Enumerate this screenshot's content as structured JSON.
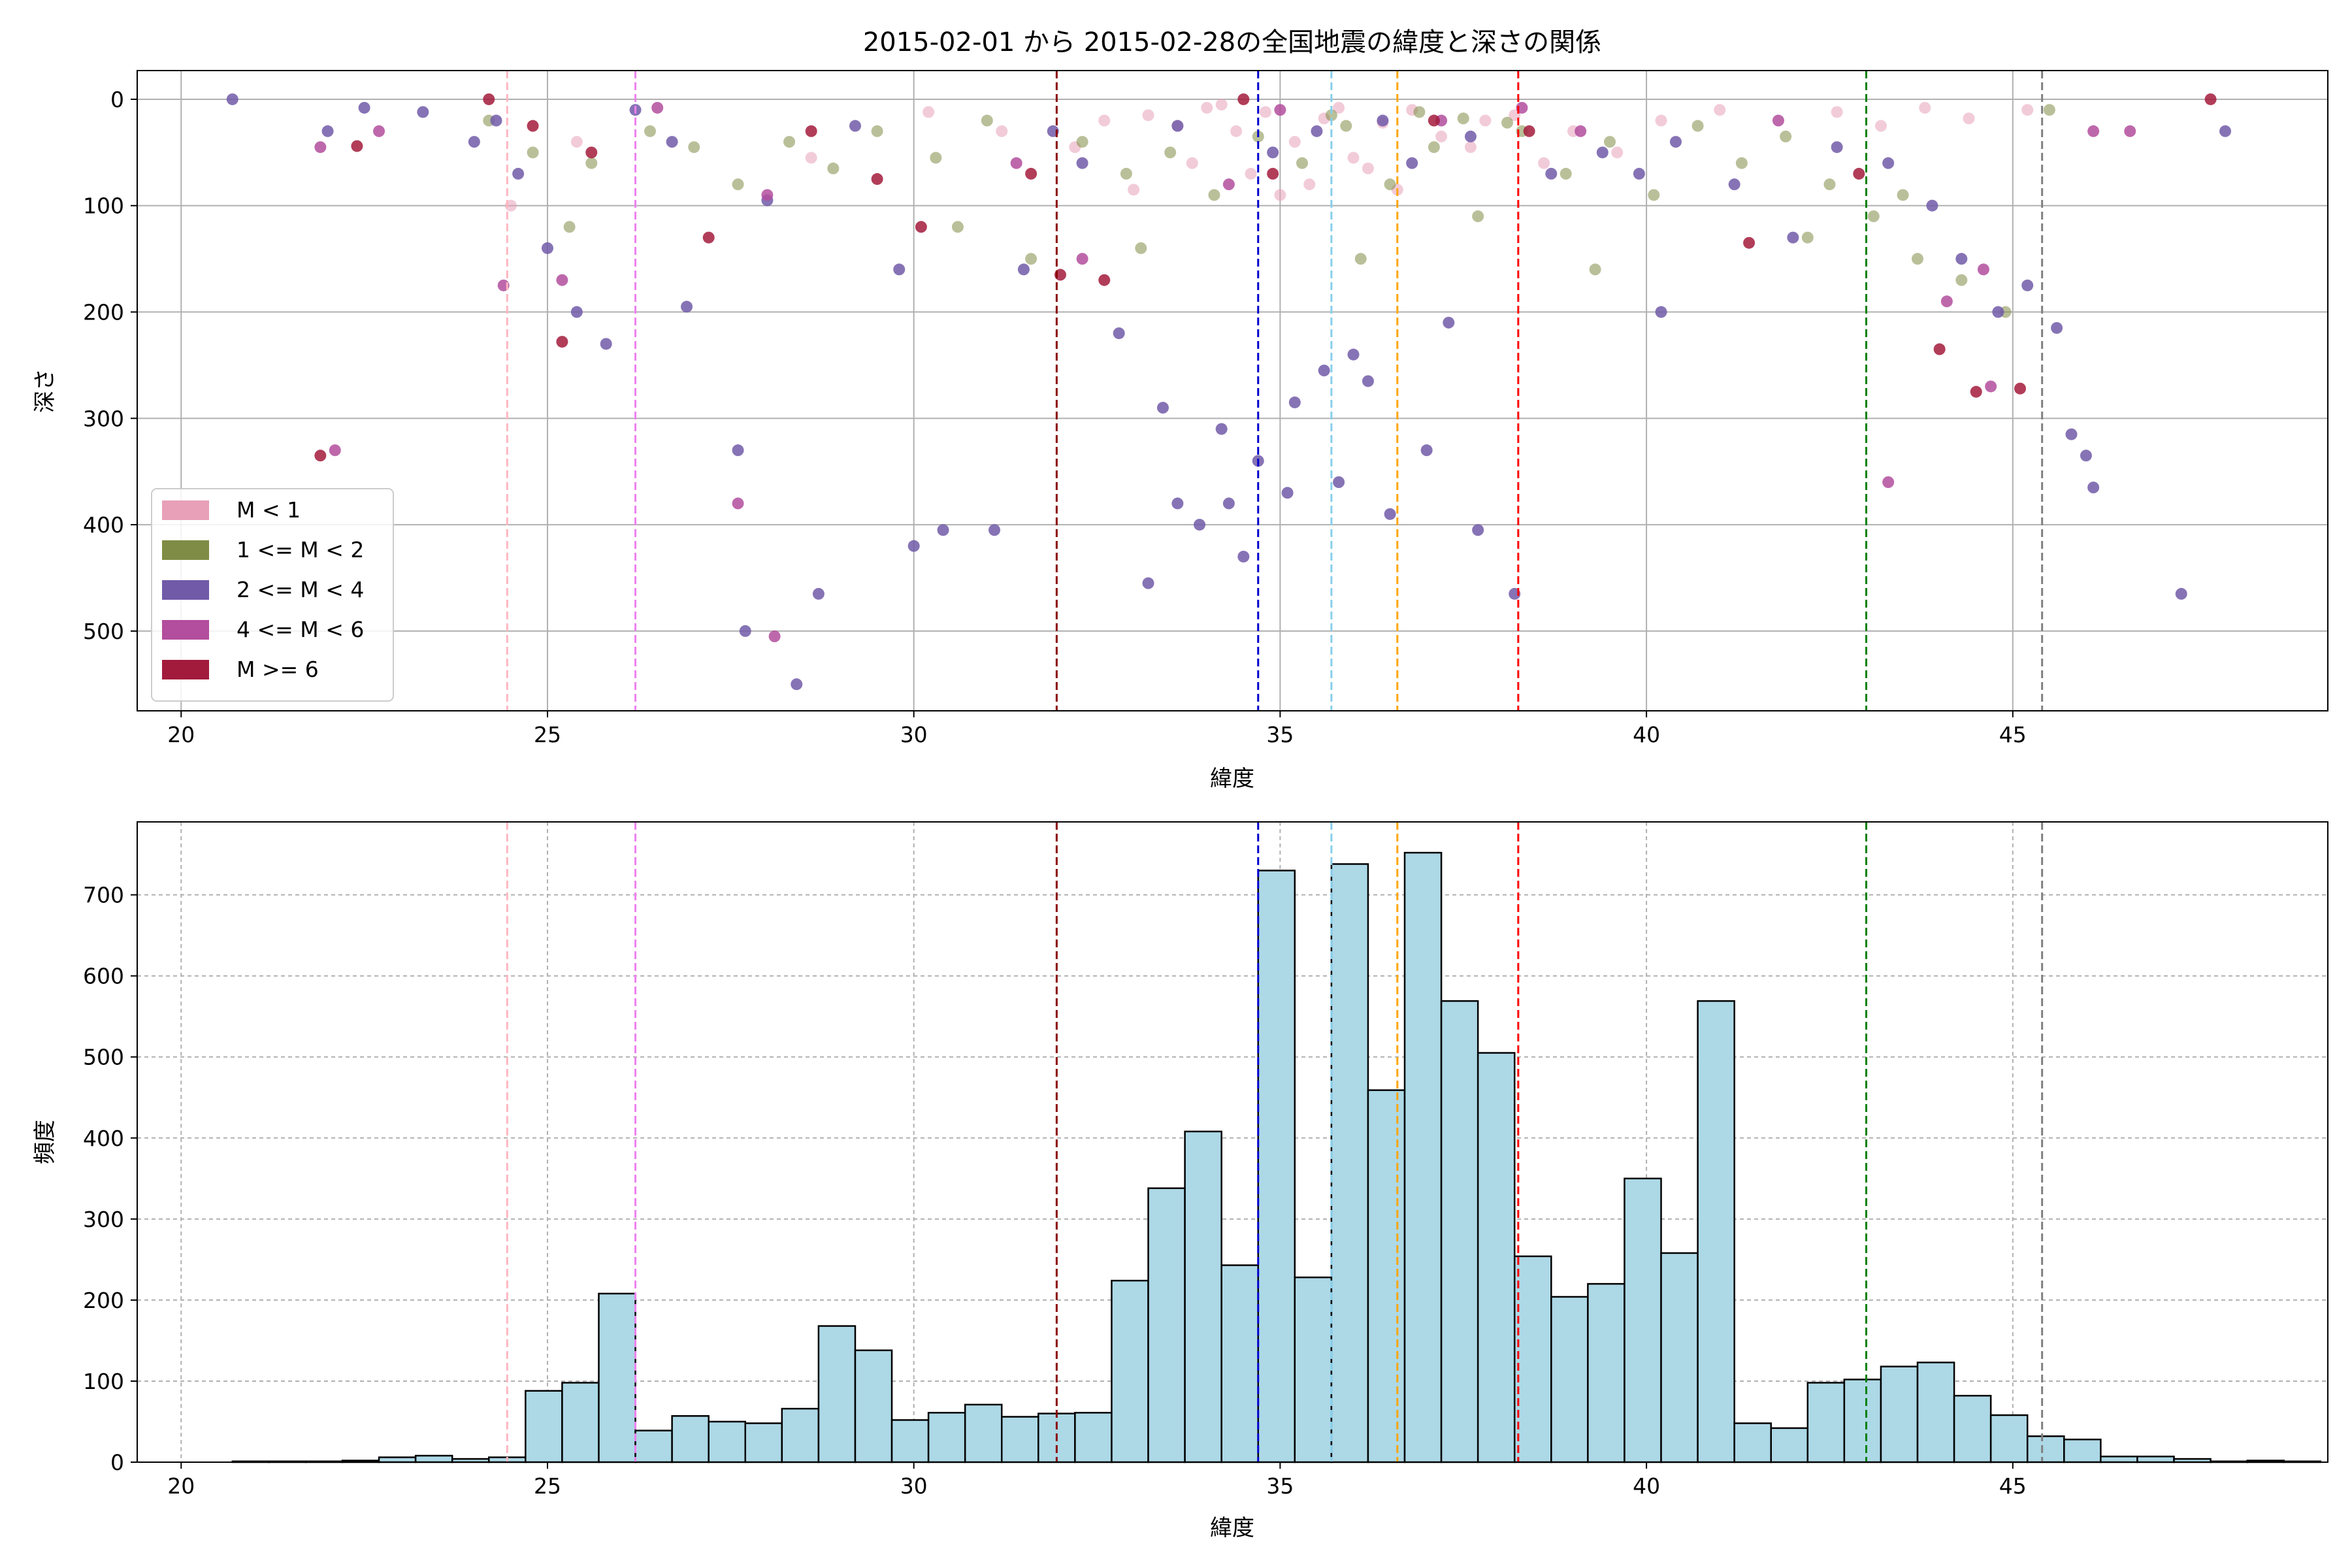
{
  "title": "2015-02-01 から 2015-02-28の全国地震の緯度と深さの関係",
  "colors": {
    "m_lt1": "#e8a0b9",
    "m_1_2": "#7f8c45",
    "m_2_4": "#715aa8",
    "m_4_6": "#b34d9d",
    "m_ge6": "#a31b3c",
    "hist_fill": "#add8e6",
    "hist_edge": "#000000",
    "grid": "#b0b0b0"
  },
  "chart_data": [
    {
      "type": "scatter",
      "xlabel": "緯度",
      "ylabel": "深さ",
      "xlim": [
        19.4,
        49.3
      ],
      "ylim": [
        575,
        -27
      ],
      "y_inverted": true,
      "xticks": [
        20,
        25,
        30,
        35,
        40,
        45
      ],
      "yticks": [
        0,
        100,
        200,
        300,
        400,
        500
      ],
      "grid": true,
      "legend_placement": "bottom-left",
      "series": [
        {
          "name": "M < 1",
          "color": "#e8a0b9",
          "points": [
            [
              33.2,
              15
            ],
            [
              33.6,
              25
            ],
            [
              34.0,
              8
            ],
            [
              34.4,
              30
            ],
            [
              34.8,
              12
            ],
            [
              35.2,
              40
            ],
            [
              35.6,
              18
            ],
            [
              36.0,
              55
            ],
            [
              36.4,
              22
            ],
            [
              36.8,
              10
            ],
            [
              37.2,
              35
            ],
            [
              33.8,
              60
            ],
            [
              34.6,
              70
            ],
            [
              35.4,
              80
            ],
            [
              36.2,
              65
            ],
            [
              32.6,
              20
            ],
            [
              37.6,
              45
            ],
            [
              38.2,
              15
            ],
            [
              39.0,
              30
            ],
            [
              39.6,
              50
            ],
            [
              40.2,
              20
            ],
            [
              41.0,
              10
            ],
            [
              42.6,
              12
            ],
            [
              43.2,
              25
            ],
            [
              43.8,
              8
            ],
            [
              44.4,
              18
            ],
            [
              45.2,
              10
            ],
            [
              24.5,
              100
            ],
            [
              25.4,
              40
            ],
            [
              28.6,
              55
            ],
            [
              30.2,
              12
            ],
            [
              31.2,
              30
            ],
            [
              32.2,
              45
            ],
            [
              35.0,
              90
            ],
            [
              36.6,
              85
            ],
            [
              37.8,
              20
            ],
            [
              38.6,
              60
            ],
            [
              34.2,
              5
            ],
            [
              35.8,
              8
            ],
            [
              33.0,
              85
            ]
          ]
        },
        {
          "name": "1 <= M < 2",
          "color": "#7f8c45",
          "points": [
            [
              24.2,
              20
            ],
            [
              24.8,
              50
            ],
            [
              25.3,
              120
            ],
            [
              25.6,
              60
            ],
            [
              26.4,
              30
            ],
            [
              27.0,
              45
            ],
            [
              27.6,
              80
            ],
            [
              28.3,
              40
            ],
            [
              28.9,
              65
            ],
            [
              29.5,
              30
            ],
            [
              30.3,
              55
            ],
            [
              31.0,
              20
            ],
            [
              31.6,
              150
            ],
            [
              32.3,
              40
            ],
            [
              32.9,
              70
            ],
            [
              33.5,
              50
            ],
            [
              34.1,
              90
            ],
            [
              34.7,
              35
            ],
            [
              35.3,
              60
            ],
            [
              35.9,
              25
            ],
            [
              36.5,
              80
            ],
            [
              37.1,
              45
            ],
            [
              37.7,
              110
            ],
            [
              38.3,
              30
            ],
            [
              38.9,
              70
            ],
            [
              39.5,
              40
            ],
            [
              40.1,
              90
            ],
            [
              40.7,
              25
            ],
            [
              41.3,
              60
            ],
            [
              41.9,
              35
            ],
            [
              42.5,
              80
            ],
            [
              43.1,
              110
            ],
            [
              43.7,
              150
            ],
            [
              44.3,
              170
            ],
            [
              44.9,
              200
            ],
            [
              45.5,
              10
            ],
            [
              30.6,
              120
            ],
            [
              33.1,
              140
            ],
            [
              36.1,
              150
            ],
            [
              39.3,
              160
            ],
            [
              42.2,
              130
            ],
            [
              43.5,
              90
            ],
            [
              35.7,
              15
            ],
            [
              36.9,
              12
            ],
            [
              37.5,
              18
            ],
            [
              38.1,
              22
            ]
          ]
        },
        {
          "name": "2 <= M < 4",
          "color": "#715aa8",
          "points": [
            [
              20.7,
              0
            ],
            [
              22.0,
              30
            ],
            [
              22.5,
              8
            ],
            [
              23.3,
              12
            ],
            [
              24.0,
              40
            ],
            [
              24.6,
              70
            ],
            [
              25.0,
              140
            ],
            [
              25.4,
              200
            ],
            [
              25.8,
              230
            ],
            [
              26.2,
              10
            ],
            [
              26.9,
              195
            ],
            [
              27.6,
              330
            ],
            [
              27.7,
              500
            ],
            [
              28.0,
              95
            ],
            [
              28.4,
              550
            ],
            [
              28.7,
              465
            ],
            [
              29.8,
              160
            ],
            [
              30.0,
              420
            ],
            [
              30.4,
              405
            ],
            [
              31.1,
              405
            ],
            [
              31.5,
              160
            ],
            [
              32.3,
              60
            ],
            [
              32.8,
              220
            ],
            [
              33.2,
              455
            ],
            [
              33.4,
              290
            ],
            [
              33.6,
              380
            ],
            [
              33.9,
              400
            ],
            [
              34.2,
              310
            ],
            [
              34.3,
              380
            ],
            [
              34.5,
              430
            ],
            [
              34.7,
              340
            ],
            [
              35.1,
              370
            ],
            [
              35.2,
              285
            ],
            [
              35.6,
              255
            ],
            [
              35.8,
              360
            ],
            [
              36.0,
              240
            ],
            [
              36.2,
              265
            ],
            [
              36.5,
              390
            ],
            [
              37.0,
              330
            ],
            [
              37.3,
              210
            ],
            [
              37.7,
              405
            ],
            [
              38.2,
              465
            ],
            [
              36.8,
              60
            ],
            [
              38.7,
              70
            ],
            [
              39.4,
              50
            ],
            [
              39.9,
              70
            ],
            [
              40.4,
              40
            ],
            [
              41.2,
              80
            ],
            [
              42.0,
              130
            ],
            [
              42.6,
              45
            ],
            [
              43.3,
              60
            ],
            [
              43.9,
              100
            ],
            [
              44.3,
              150
            ],
            [
              44.8,
              200
            ],
            [
              45.2,
              175
            ],
            [
              45.6,
              215
            ],
            [
              45.8,
              315
            ],
            [
              46.0,
              335
            ],
            [
              46.1,
              365
            ],
            [
              47.3,
              465
            ],
            [
              47.9,
              30
            ],
            [
              40.2,
              200
            ],
            [
              35.5,
              30
            ],
            [
              36.4,
              20
            ],
            [
              37.6,
              35
            ],
            [
              34.9,
              50
            ],
            [
              33.6,
              25
            ],
            [
              24.3,
              20
            ],
            [
              26.7,
              40
            ],
            [
              29.2,
              25
            ],
            [
              31.9,
              30
            ]
          ]
        },
        {
          "name": "4 <= M < 6",
          "color": "#b34d9d",
          "points": [
            [
              21.9,
              45
            ],
            [
              22.1,
              330
            ],
            [
              22.7,
              30
            ],
            [
              24.4,
              175
            ],
            [
              25.2,
              170
            ],
            [
              26.5,
              8
            ],
            [
              27.6,
              380
            ],
            [
              28.1,
              505
            ],
            [
              28.0,
              90
            ],
            [
              31.4,
              60
            ],
            [
              32.3,
              150
            ],
            [
              34.3,
              80
            ],
            [
              35.0,
              10
            ],
            [
              37.2,
              20
            ],
            [
              38.3,
              8
            ],
            [
              39.1,
              30
            ],
            [
              41.8,
              20
            ],
            [
              43.3,
              360
            ],
            [
              44.1,
              190
            ],
            [
              44.6,
              160
            ],
            [
              44.7,
              270
            ],
            [
              46.1,
              30
            ],
            [
              46.6,
              30
            ]
          ]
        },
        {
          "name": "M >= 6",
          "color": "#a31b3c",
          "points": [
            [
              21.9,
              335
            ],
            [
              22.4,
              44
            ],
            [
              24.2,
              0
            ],
            [
              24.8,
              25
            ],
            [
              25.2,
              228
            ],
            [
              25.6,
              50
            ],
            [
              27.2,
              130
            ],
            [
              28.6,
              30
            ],
            [
              29.5,
              75
            ],
            [
              30.1,
              120
            ],
            [
              31.6,
              70
            ],
            [
              32.0,
              165
            ],
            [
              32.6,
              170
            ],
            [
              34.5,
              0
            ],
            [
              34.9,
              70
            ],
            [
              37.1,
              20
            ],
            [
              38.4,
              30
            ],
            [
              41.4,
              135
            ],
            [
              42.9,
              70
            ],
            [
              44.0,
              235
            ],
            [
              44.5,
              275
            ],
            [
              45.1,
              272
            ],
            [
              47.7,
              0
            ]
          ]
        }
      ],
      "vlines": [
        {
          "x": 24.45,
          "color": "#ffb6c1"
        },
        {
          "x": 26.2,
          "color": "#ee82ee"
        },
        {
          "x": 31.95,
          "color": "#8b0000"
        },
        {
          "x": 34.7,
          "color": "#0000cd"
        },
        {
          "x": 35.7,
          "color": "#87ceeb"
        },
        {
          "x": 36.6,
          "color": "#ffa500"
        },
        {
          "x": 38.25,
          "color": "#ff0000"
        },
        {
          "x": 43.0,
          "color": "#008000"
        },
        {
          "x": 45.4,
          "color": "#808080"
        }
      ]
    },
    {
      "type": "bar",
      "xlabel": "緯度",
      "ylabel": "頻度",
      "xlim": [
        19.4,
        49.3
      ],
      "ylim": [
        0,
        790
      ],
      "xticks": [
        20,
        25,
        30,
        35,
        40,
        45
      ],
      "yticks": [
        0,
        100,
        200,
        300,
        400,
        500,
        600,
        700
      ],
      "grid": true,
      "bin_start": 20.7,
      "bin_width": 0.5,
      "values": [
        1,
        1,
        1,
        2,
        6,
        8,
        4,
        6,
        88,
        98,
        208,
        39,
        57,
        50,
        48,
        66,
        168,
        138,
        52,
        61,
        71,
        56,
        60,
        61,
        224,
        338,
        408,
        243,
        730,
        228,
        738,
        459,
        752,
        569,
        505,
        254,
        204,
        220,
        350,
        258,
        569,
        48,
        42,
        98,
        102,
        118,
        123,
        82,
        58,
        32,
        28,
        7,
        7,
        4,
        1,
        2,
        1
      ],
      "vlines": [
        {
          "x": 24.45,
          "color": "#ffb6c1"
        },
        {
          "x": 26.2,
          "color": "#ee82ee"
        },
        {
          "x": 31.95,
          "color": "#8b0000"
        },
        {
          "x": 34.7,
          "color": "#0000cd"
        },
        {
          "x": 35.7,
          "color": "#87ceeb"
        },
        {
          "x": 36.6,
          "color": "#ffa500"
        },
        {
          "x": 38.25,
          "color": "#ff0000"
        },
        {
          "x": 43.0,
          "color": "#008000"
        },
        {
          "x": 45.4,
          "color": "#808080"
        }
      ]
    }
  ]
}
